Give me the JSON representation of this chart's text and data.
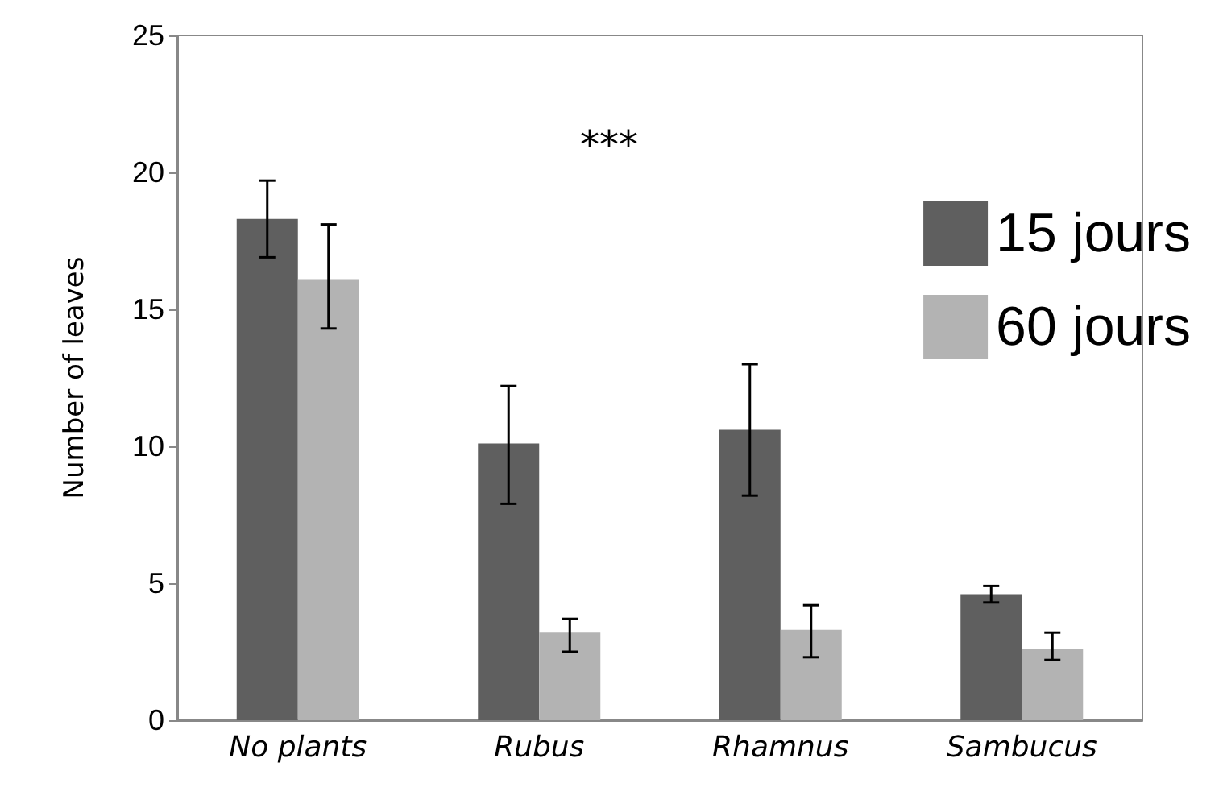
{
  "chart_data": {
    "type": "bar",
    "ylabel": "Number of leaves",
    "categories": [
      "No plants",
      "Rubus",
      "Rhamnus",
      "Sambucus"
    ],
    "series": [
      {
        "name": "15 jours",
        "color": "#5f5f5f",
        "values": [
          18.3,
          10.1,
          10.6,
          4.6
        ],
        "errors": [
          [
            16.9,
            19.7
          ],
          [
            7.9,
            12.2
          ],
          [
            8.2,
            13.0
          ],
          [
            4.3,
            4.9
          ]
        ]
      },
      {
        "name": "60 jours",
        "color": "#b3b3b3",
        "values": [
          16.1,
          3.2,
          3.3,
          2.6
        ],
        "errors": [
          [
            14.3,
            18.1
          ],
          [
            2.5,
            3.7
          ],
          [
            2.3,
            4.2
          ],
          [
            2.2,
            3.2
          ]
        ]
      }
    ],
    "ylim": [
      0,
      25
    ],
    "yticks": [
      0,
      5,
      10,
      15,
      20,
      25
    ],
    "grid": false,
    "legend": "right",
    "annotations": [
      "***"
    ]
  }
}
